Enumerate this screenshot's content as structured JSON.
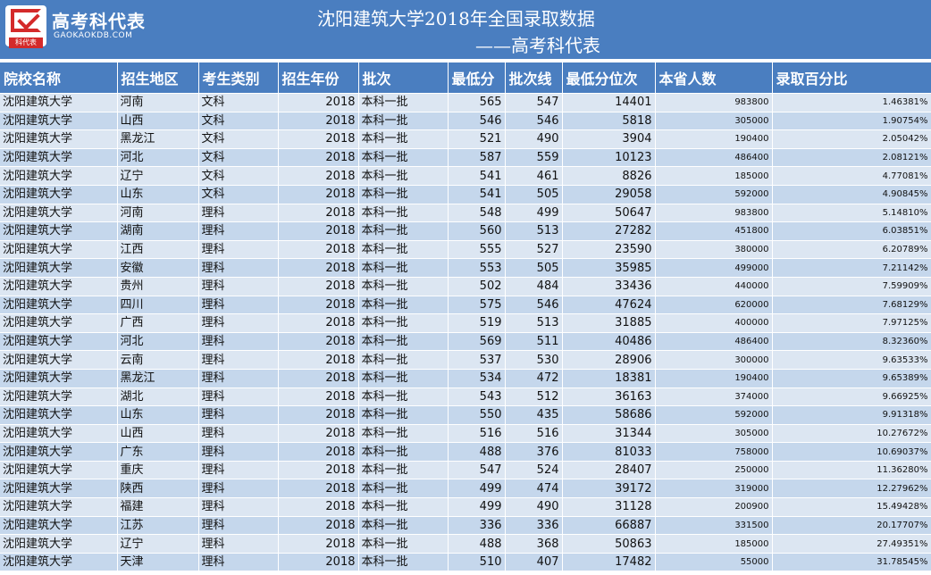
{
  "brand": {
    "name": "高考科代表",
    "url": "GAOKAOKDB.COM",
    "tag": "科代表"
  },
  "page": {
    "title": "沈阳建筑大学2018年全国录取数据",
    "subtitle": "——高考科代表"
  },
  "table": {
    "headers": [
      "院校名称",
      "招生地区",
      "考生类别",
      "招生年份",
      "批次",
      "最低分",
      "批次线",
      "最低分位次",
      "本省人数",
      "录取百分比"
    ],
    "rows": [
      [
        "沈阳建筑大学",
        "河南",
        "文科",
        "2018",
        "本科一批",
        "565",
        "547",
        "14401",
        "983800",
        "1.46381%"
      ],
      [
        "沈阳建筑大学",
        "山西",
        "文科",
        "2018",
        "本科一批",
        "546",
        "546",
        "5818",
        "305000",
        "1.90754%"
      ],
      [
        "沈阳建筑大学",
        "黑龙江",
        "文科",
        "2018",
        "本科一批",
        "521",
        "490",
        "3904",
        "190400",
        "2.05042%"
      ],
      [
        "沈阳建筑大学",
        "河北",
        "文科",
        "2018",
        "本科一批",
        "587",
        "559",
        "10123",
        "486400",
        "2.08121%"
      ],
      [
        "沈阳建筑大学",
        "辽宁",
        "文科",
        "2018",
        "本科一批",
        "541",
        "461",
        "8826",
        "185000",
        "4.77081%"
      ],
      [
        "沈阳建筑大学",
        "山东",
        "文科",
        "2018",
        "本科一批",
        "541",
        "505",
        "29058",
        "592000",
        "4.90845%"
      ],
      [
        "沈阳建筑大学",
        "河南",
        "理科",
        "2018",
        "本科一批",
        "548",
        "499",
        "50647",
        "983800",
        "5.14810%"
      ],
      [
        "沈阳建筑大学",
        "湖南",
        "理科",
        "2018",
        "本科一批",
        "560",
        "513",
        "27282",
        "451800",
        "6.03851%"
      ],
      [
        "沈阳建筑大学",
        "江西",
        "理科",
        "2018",
        "本科一批",
        "555",
        "527",
        "23590",
        "380000",
        "6.20789%"
      ],
      [
        "沈阳建筑大学",
        "安徽",
        "理科",
        "2018",
        "本科一批",
        "553",
        "505",
        "35985",
        "499000",
        "7.21142%"
      ],
      [
        "沈阳建筑大学",
        "贵州",
        "理科",
        "2018",
        "本科一批",
        "502",
        "484",
        "33436",
        "440000",
        "7.59909%"
      ],
      [
        "沈阳建筑大学",
        "四川",
        "理科",
        "2018",
        "本科一批",
        "575",
        "546",
        "47624",
        "620000",
        "7.68129%"
      ],
      [
        "沈阳建筑大学",
        "广西",
        "理科",
        "2018",
        "本科一批",
        "519",
        "513",
        "31885",
        "400000",
        "7.97125%"
      ],
      [
        "沈阳建筑大学",
        "河北",
        "理科",
        "2018",
        "本科一批",
        "569",
        "511",
        "40486",
        "486400",
        "8.32360%"
      ],
      [
        "沈阳建筑大学",
        "云南",
        "理科",
        "2018",
        "本科一批",
        "537",
        "530",
        "28906",
        "300000",
        "9.63533%"
      ],
      [
        "沈阳建筑大学",
        "黑龙江",
        "理科",
        "2018",
        "本科一批",
        "534",
        "472",
        "18381",
        "190400",
        "9.65389%"
      ],
      [
        "沈阳建筑大学",
        "湖北",
        "理科",
        "2018",
        "本科一批",
        "543",
        "512",
        "36163",
        "374000",
        "9.66925%"
      ],
      [
        "沈阳建筑大学",
        "山东",
        "理科",
        "2018",
        "本科一批",
        "550",
        "435",
        "58686",
        "592000",
        "9.91318%"
      ],
      [
        "沈阳建筑大学",
        "山西",
        "理科",
        "2018",
        "本科一批",
        "516",
        "516",
        "31344",
        "305000",
        "10.27672%"
      ],
      [
        "沈阳建筑大学",
        "广东",
        "理科",
        "2018",
        "本科一批",
        "488",
        "376",
        "81033",
        "758000",
        "10.69037%"
      ],
      [
        "沈阳建筑大学",
        "重庆",
        "理科",
        "2018",
        "本科一批",
        "547",
        "524",
        "28407",
        "250000",
        "11.36280%"
      ],
      [
        "沈阳建筑大学",
        "陕西",
        "理科",
        "2018",
        "本科一批",
        "499",
        "474",
        "39172",
        "319000",
        "12.27962%"
      ],
      [
        "沈阳建筑大学",
        "福建",
        "理科",
        "2018",
        "本科一批",
        "499",
        "490",
        "31128",
        "200900",
        "15.49428%"
      ],
      [
        "沈阳建筑大学",
        "江苏",
        "理科",
        "2018",
        "本科一批",
        "336",
        "336",
        "66887",
        "331500",
        "20.17707%"
      ],
      [
        "沈阳建筑大学",
        "辽宁",
        "理科",
        "2018",
        "本科一批",
        "488",
        "368",
        "50863",
        "185000",
        "27.49351%"
      ],
      [
        "沈阳建筑大学",
        "天津",
        "理科",
        "2018",
        "本科一批",
        "510",
        "407",
        "17482",
        "55000",
        "31.78545%"
      ]
    ]
  }
}
